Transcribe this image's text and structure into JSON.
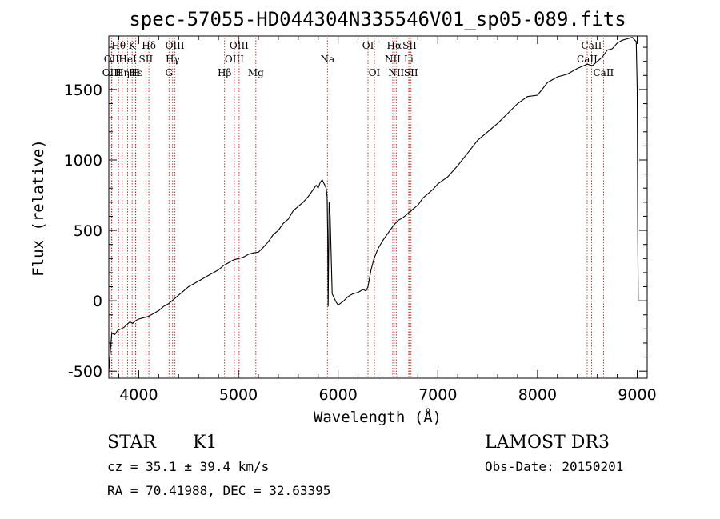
{
  "chart_data": {
    "type": "line",
    "title": "spec-57055-HD044304N335546V01_sp05-089.fits",
    "xlabel": "Wavelength (Å)",
    "ylabel": "Flux (relative)",
    "xlim": [
      3700,
      9100
    ],
    "ylim": [
      -550,
      1880
    ],
    "xticks": [
      4000,
      5000,
      6000,
      7000,
      8000,
      9000
    ],
    "yticks": [
      -500,
      0,
      500,
      1000,
      1500
    ],
    "series": [
      {
        "name": "flux",
        "x": [
          3700,
          3730,
          3760,
          3790,
          3820,
          3850,
          3880,
          3910,
          3940,
          3970,
          4000,
          4050,
          4100,
          4150,
          4200,
          4250,
          4300,
          4350,
          4400,
          4450,
          4500,
          4550,
          4600,
          4650,
          4700,
          4750,
          4800,
          4850,
          4900,
          4950,
          5000,
          5050,
          5100,
          5150,
          5200,
          5250,
          5300,
          5350,
          5400,
          5450,
          5500,
          5550,
          5600,
          5650,
          5700,
          5750,
          5780,
          5800,
          5820,
          5840,
          5860,
          5880,
          5890,
          5895,
          5900,
          5910,
          5920,
          5940,
          5960,
          5980,
          6000,
          6050,
          6100,
          6150,
          6200,
          6250,
          6280,
          6300,
          6330,
          6360,
          6400,
          6450,
          6500,
          6550,
          6600,
          6650,
          6700,
          6750,
          6800,
          6850,
          6900,
          6950,
          7000,
          7100,
          7200,
          7300,
          7400,
          7500,
          7600,
          7700,
          7800,
          7900,
          8000,
          8100,
          8200,
          8300,
          8400,
          8500,
          8550,
          8600,
          8650,
          8700,
          8750,
          8800,
          8850,
          8900,
          8950,
          8990,
          9000,
          9005,
          9010
        ],
        "values": [
          -500,
          -230,
          -240,
          -210,
          -200,
          -190,
          -170,
          -150,
          -160,
          -140,
          -130,
          -120,
          -110,
          -90,
          -70,
          -40,
          -20,
          10,
          40,
          70,
          100,
          120,
          140,
          160,
          180,
          200,
          220,
          250,
          270,
          290,
          300,
          310,
          330,
          340,
          345,
          380,
          420,
          470,
          500,
          550,
          580,
          640,
          670,
          700,
          740,
          790,
          820,
          800,
          840,
          860,
          830,
          800,
          740,
          480,
          -40,
          700,
          600,
          50,
          20,
          -10,
          -30,
          -5,
          30,
          50,
          60,
          80,
          70,
          100,
          220,
          300,
          370,
          430,
          480,
          530,
          570,
          590,
          620,
          650,
          680,
          730,
          760,
          790,
          830,
          880,
          960,
          1050,
          1140,
          1200,
          1260,
          1330,
          1400,
          1450,
          1460,
          1550,
          1590,
          1610,
          1650,
          1680,
          1670,
          1700,
          1730,
          1780,
          1790,
          1830,
          1850,
          1860,
          1870,
          1840,
          1500,
          500,
          0
        ]
      }
    ],
    "lines": [
      {
        "name": "Hθ",
        "x": 3798,
        "row": 1
      },
      {
        "name": "OII",
        "x": 3727,
        "row": 2
      },
      {
        "name": "OIII",
        "x": 3730,
        "row": 3
      },
      {
        "name": "K",
        "x": 3934,
        "row": 1
      },
      {
        "name": "Hε",
        "x": 3970,
        "row": 3
      },
      {
        "name": "HeI",
        "x": 3889,
        "row": 2
      },
      {
        "name": "SII",
        "x": 4072,
        "row": 2
      },
      {
        "name": "Hη",
        "x": 3835,
        "row": 3
      },
      {
        "name": "H",
        "x": 3968,
        "row": 3
      },
      {
        "name": "Hδ",
        "x": 4102,
        "row": 1
      },
      {
        "name": "OIII",
        "x": 4363,
        "row": 1
      },
      {
        "name": "Hγ",
        "x": 4340,
        "row": 2
      },
      {
        "name": "G",
        "x": 4304,
        "row": 3
      },
      {
        "name": "Hβ",
        "x": 4861,
        "row": 3
      },
      {
        "name": "OIII",
        "x": 5007,
        "row": 1
      },
      {
        "name": "OIII",
        "x": 4959,
        "row": 2
      },
      {
        "name": "Mg",
        "x": 5175,
        "row": 3
      },
      {
        "name": "Na",
        "x": 5893,
        "row": 2
      },
      {
        "name": "OI",
        "x": 6300,
        "row": 1
      },
      {
        "name": "OI",
        "x": 6364,
        "row": 3
      },
      {
        "name": "Hα",
        "x": 6563,
        "row": 1
      },
      {
        "name": "NII",
        "x": 6548,
        "row": 2
      },
      {
        "name": "NII",
        "x": 6583,
        "row": 3
      },
      {
        "name": "SII",
        "x": 6717,
        "row": 1
      },
      {
        "name": "Li",
        "x": 6708,
        "row": 2
      },
      {
        "name": "SII",
        "x": 6731,
        "row": 3
      },
      {
        "name": "CaII",
        "x": 8542,
        "row": 1
      },
      {
        "name": "CaII",
        "x": 8498,
        "row": 2
      },
      {
        "name": "CaII",
        "x": 8662,
        "row": 3
      }
    ]
  },
  "info": {
    "class": "STAR",
    "subclass": "K1",
    "survey": "LAMOST DR3",
    "cz": "cz = 35.1 ± 39.4 km/s",
    "obs_date": "Obs-Date: 20150201",
    "coords": "RA =  70.41988, DEC =  32.63395"
  }
}
